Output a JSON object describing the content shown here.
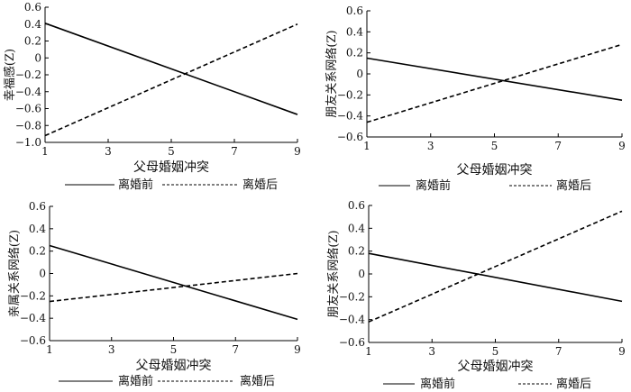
{
  "chart_data": [
    {
      "type": "line",
      "xlabel": "父母婚姻冲突",
      "ylabel": "幸福感(Z)",
      "xlim": [
        1,
        9
      ],
      "ylim": [
        -1.0,
        0.6
      ],
      "x_ticks": [
        1,
        3,
        5,
        7,
        9
      ],
      "y_ticks": [
        -1.0,
        -0.8,
        -0.6,
        -0.4,
        -0.2,
        0,
        0.2,
        0.4,
        0.6
      ],
      "x_tick_labels": [
        "1",
        "3",
        "5",
        "7",
        "9"
      ],
      "y_tick_labels": [
        "−1.0",
        "−0.8",
        "−0.6",
        "−0.4",
        "−0.2",
        "0",
        "0.2",
        "0.4",
        "0.6"
      ],
      "legend_position": "bottom",
      "series": [
        {
          "name": "离婚前",
          "style": "solid",
          "x": [
            1,
            9
          ],
          "y": [
            0.41,
            -0.67
          ]
        },
        {
          "name": "离婚后",
          "style": "dashed",
          "x": [
            1,
            9
          ],
          "y": [
            -0.92,
            0.4
          ]
        }
      ]
    },
    {
      "type": "line",
      "xlabel": "父母婚姻冲突",
      "ylabel": "朋友关系网络(Z)",
      "xlim": [
        1,
        9
      ],
      "ylim": [
        -0.6,
        0.6
      ],
      "x_ticks": [
        1,
        3,
        5,
        7,
        9
      ],
      "y_ticks": [
        -0.6,
        -0.4,
        -0.2,
        0,
        0.2,
        0.4,
        0.6
      ],
      "x_tick_labels": [
        "1",
        "3",
        "5",
        "7",
        "9"
      ],
      "y_tick_labels": [
        "−0.6",
        "−0.4",
        "−0.2",
        "0",
        "0.2",
        "0.4",
        "0.6"
      ],
      "legend_position": "bottom",
      "series": [
        {
          "name": "离婚前",
          "style": "solid",
          "x": [
            1,
            9
          ],
          "y": [
            0.15,
            -0.25
          ]
        },
        {
          "name": "离婚后",
          "style": "dashed",
          "x": [
            1,
            9
          ],
          "y": [
            -0.46,
            0.28
          ]
        }
      ]
    },
    {
      "type": "line",
      "xlabel": "父母婚姻冲突",
      "ylabel": "亲属关系网络(Z)",
      "xlim": [
        1,
        9
      ],
      "ylim": [
        -0.6,
        0.6
      ],
      "x_ticks": [
        1,
        3,
        5,
        7,
        9
      ],
      "y_ticks": [
        -0.6,
        -0.4,
        -0.2,
        0,
        0.2,
        0.4,
        0.6
      ],
      "x_tick_labels": [
        "1",
        "3",
        "5",
        "7",
        "9"
      ],
      "y_tick_labels": [
        "−0.6",
        "−0.4",
        "−0.2",
        "0",
        "0.2",
        "0.4",
        "0.6"
      ],
      "legend_position": "bottom",
      "series": [
        {
          "name": "离婚前",
          "style": "solid",
          "x": [
            1,
            9
          ],
          "y": [
            0.25,
            -0.41
          ]
        },
        {
          "name": "离婚后",
          "style": "dashed",
          "x": [
            1,
            9
          ],
          "y": [
            -0.25,
            0.0
          ]
        }
      ]
    },
    {
      "type": "line",
      "xlabel": "父母婚姻冲突",
      "ylabel": "朋友关系网络(Z)",
      "xlim": [
        1,
        9
      ],
      "ylim": [
        -0.6,
        0.6
      ],
      "x_ticks": [
        1,
        3,
        5,
        7,
        9
      ],
      "y_ticks": [
        -0.6,
        -0.4,
        -0.2,
        0,
        0.2,
        0.4,
        0.6
      ],
      "x_tick_labels": [
        "1",
        "3",
        "5",
        "7",
        "9"
      ],
      "y_tick_labels": [
        "−0.6",
        "−0.4",
        "−0.2",
        "0",
        "0.2",
        "0.4",
        "0.6"
      ],
      "legend_position": "bottom",
      "series": [
        {
          "name": "离婚前",
          "style": "solid",
          "x": [
            1,
            9
          ],
          "y": [
            0.18,
            -0.24
          ]
        },
        {
          "name": "离婚后",
          "style": "dashed",
          "x": [
            1,
            9
          ],
          "y": [
            -0.42,
            0.55
          ]
        }
      ]
    }
  ]
}
